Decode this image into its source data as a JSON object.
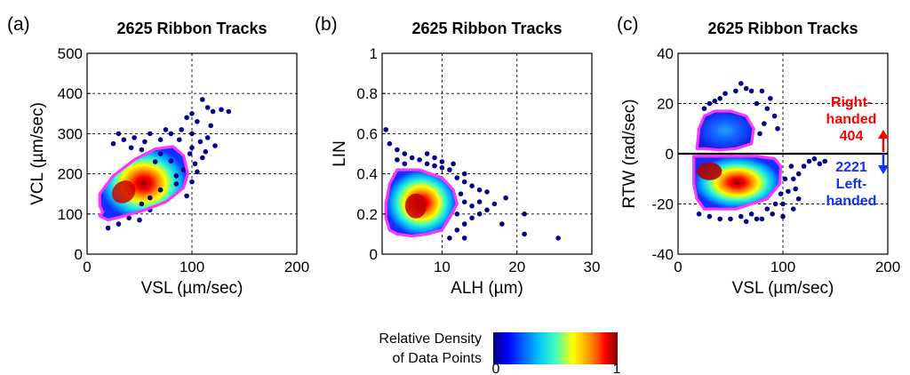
{
  "colors": {
    "contour": "#ff33ff",
    "right_handed": "#ff0000",
    "left_handed": "#1030ff",
    "scatter": "#00008b",
    "colormap": [
      "#000080",
      "#0000ff",
      "#00bfff",
      "#40ffbf",
      "#ffff00",
      "#ff8000",
      "#ff0000",
      "#800000"
    ]
  },
  "chart_data": [
    {
      "type": "scatter",
      "label": "(a)",
      "title": "2625 Ribbon Tracks",
      "xlabel": "VSL (µm/sec)",
      "ylabel": "VCL (µm/sec)",
      "xlim": [
        0,
        200
      ],
      "ylim": [
        0,
        500
      ],
      "xticks": [
        "0",
        "100",
        "200"
      ],
      "yticks": [
        "0",
        "100",
        "200",
        "300",
        "400",
        "500"
      ],
      "grid": true,
      "density_peak": [
        35,
        155
      ],
      "contour": [
        [
          15,
          105
        ],
        [
          12,
          95
        ],
        [
          20,
          85
        ],
        [
          35,
          95
        ],
        [
          55,
          110
        ],
        [
          75,
          130
        ],
        [
          92,
          165
        ],
        [
          96,
          200
        ],
        [
          92,
          245
        ],
        [
          82,
          268
        ],
        [
          65,
          262
        ],
        [
          45,
          235
        ],
        [
          25,
          195
        ],
        [
          12,
          150
        ],
        [
          12,
          120
        ]
      ],
      "outliers": [
        [
          110,
          385
        ],
        [
          115,
          365
        ],
        [
          120,
          355
        ],
        [
          128,
          360
        ],
        [
          135,
          355
        ],
        [
          100,
          350
        ],
        [
          105,
          330
        ],
        [
          95,
          340
        ],
        [
          118,
          320
        ],
        [
          100,
          300
        ],
        [
          90,
          310
        ],
        [
          80,
          300
        ],
        [
          108,
          280
        ],
        [
          115,
          290
        ],
        [
          122,
          270
        ],
        [
          98,
          250
        ],
        [
          110,
          240
        ],
        [
          105,
          205
        ],
        [
          100,
          180
        ],
        [
          85,
          175
        ],
        [
          70,
          160
        ],
        [
          60,
          140
        ],
        [
          52,
          125
        ],
        [
          95,
          145
        ],
        [
          40,
          90
        ],
        [
          30,
          75
        ],
        [
          20,
          65
        ],
        [
          50,
          85
        ],
        [
          60,
          110
        ],
        [
          30,
          300
        ],
        [
          35,
          285
        ],
        [
          45,
          290
        ],
        [
          55,
          280
        ],
        [
          60,
          300
        ],
        [
          25,
          275
        ],
        [
          42,
          265
        ],
        [
          70,
          285
        ],
        [
          75,
          310
        ],
        [
          88,
          285
        ],
        [
          100,
          265
        ],
        [
          113,
          255
        ],
        [
          103,
          225
        ],
        [
          92,
          210
        ],
        [
          85,
          195
        ],
        [
          80,
          232
        ],
        [
          65,
          230
        ],
        [
          70,
          250
        ],
        [
          52,
          260
        ]
      ]
    },
    {
      "type": "scatter",
      "label": "(b)",
      "title": "2625 Ribbon Tracks",
      "xlabel": "ALH (µm)",
      "ylabel": "LIN",
      "xlim": [
        2,
        30
      ],
      "ylim": [
        0,
        1
      ],
      "xticks": [
        "10",
        "20",
        "30"
      ],
      "yticks": [
        "0",
        "0.2",
        "0.4",
        "0.6",
        "0.8",
        "1"
      ],
      "grid": true,
      "density_peak": [
        6.5,
        0.24
      ],
      "contour": [
        [
          3,
          0.12
        ],
        [
          4,
          0.1
        ],
        [
          6,
          0.09
        ],
        [
          8,
          0.1
        ],
        [
          10,
          0.12
        ],
        [
          11,
          0.18
        ],
        [
          12,
          0.25
        ],
        [
          11.5,
          0.32
        ],
        [
          10,
          0.38
        ],
        [
          7,
          0.42
        ],
        [
          4,
          0.42
        ],
        [
          3,
          0.35
        ],
        [
          2.5,
          0.25
        ],
        [
          2.5,
          0.18
        ]
      ],
      "outliers": [
        [
          2.5,
          0.62
        ],
        [
          3,
          0.55
        ],
        [
          4,
          0.52
        ],
        [
          5,
          0.5
        ],
        [
          6,
          0.48
        ],
        [
          7,
          0.47
        ],
        [
          8,
          0.45
        ],
        [
          9,
          0.44
        ],
        [
          10,
          0.43
        ],
        [
          11,
          0.42
        ],
        [
          12,
          0.38
        ],
        [
          13,
          0.36
        ],
        [
          14,
          0.34
        ],
        [
          15,
          0.32
        ],
        [
          16,
          0.31
        ],
        [
          12,
          0.12
        ],
        [
          13,
          0.15
        ],
        [
          14,
          0.18
        ],
        [
          15,
          0.2
        ],
        [
          16,
          0.22
        ],
        [
          17,
          0.25
        ],
        [
          18,
          0.15
        ],
        [
          18.5,
          0.28
        ],
        [
          21,
          0.2
        ],
        [
          21,
          0.1
        ],
        [
          25.5,
          0.08
        ],
        [
          12.5,
          0.3
        ],
        [
          13,
          0.26
        ],
        [
          14,
          0.24
        ],
        [
          15,
          0.26
        ],
        [
          13,
          0.08
        ],
        [
          11,
          0.08
        ],
        [
          4,
          0.47
        ],
        [
          5,
          0.45
        ],
        [
          8,
          0.5
        ],
        [
          9,
          0.48
        ],
        [
          10,
          0.46
        ],
        [
          11.5,
          0.45
        ],
        [
          13,
          0.4
        ],
        [
          12,
          0.2
        ]
      ]
    },
    {
      "type": "scatter",
      "label": "(c)",
      "title": "2625 Ribbon Tracks",
      "xlabel": "VSL (µm/sec)",
      "ylabel": "RTW (rad/sec)",
      "xlim": [
        0,
        200
      ],
      "ylim": [
        -40,
        40
      ],
      "xticks": [
        "0",
        "100",
        "200"
      ],
      "yticks": [
        "-40",
        "-20",
        "0",
        "20",
        "40"
      ],
      "grid": true,
      "zero_line": true,
      "density_peaks": [
        [
          30,
          -7
        ],
        [
          45,
          12
        ]
      ],
      "contour_upper": [
        [
          18,
          2
        ],
        [
          20,
          10
        ],
        [
          25,
          15
        ],
        [
          35,
          17
        ],
        [
          50,
          17
        ],
        [
          65,
          15
        ],
        [
          72,
          10
        ],
        [
          70,
          4
        ],
        [
          55,
          2
        ],
        [
          40,
          1.5
        ],
        [
          25,
          2
        ]
      ],
      "contour_lower": [
        [
          15,
          -1
        ],
        [
          15,
          -12
        ],
        [
          18,
          -18
        ],
        [
          25,
          -22
        ],
        [
          40,
          -22
        ],
        [
          55,
          -22
        ],
        [
          70,
          -20
        ],
        [
          85,
          -18
        ],
        [
          97,
          -12
        ],
        [
          98,
          -5
        ],
        [
          92,
          -2
        ],
        [
          75,
          -1
        ],
        [
          50,
          -1
        ],
        [
          30,
          -1
        ]
      ],
      "outliers": [
        [
          60,
          28
        ],
        [
          65,
          26
        ],
        [
          70,
          25
        ],
        [
          80,
          25
        ],
        [
          88,
          22
        ],
        [
          75,
          20
        ],
        [
          85,
          18
        ],
        [
          55,
          25
        ],
        [
          45,
          24
        ],
        [
          40,
          22
        ],
        [
          35,
          21
        ],
        [
          30,
          20
        ],
        [
          25,
          18
        ],
        [
          92,
          15
        ],
        [
          95,
          10
        ],
        [
          82,
          12
        ],
        [
          78,
          8
        ],
        [
          20,
          -24
        ],
        [
          30,
          -25
        ],
        [
          40,
          -26
        ],
        [
          50,
          -26
        ],
        [
          60,
          -25
        ],
        [
          70,
          -24
        ],
        [
          80,
          -26
        ],
        [
          90,
          -24
        ],
        [
          100,
          -20
        ],
        [
          105,
          -15
        ],
        [
          110,
          -10
        ],
        [
          115,
          -8
        ],
        [
          120,
          -5
        ],
        [
          125,
          -3
        ],
        [
          130,
          -2
        ],
        [
          135,
          -4
        ],
        [
          140,
          -3
        ],
        [
          100,
          -25
        ],
        [
          110,
          -22
        ],
        [
          115,
          -18
        ],
        [
          108,
          -5
        ],
        [
          98,
          -16
        ],
        [
          93,
          -20
        ],
        [
          65,
          -27
        ],
        [
          85,
          -22
        ],
        [
          75,
          -26
        ],
        [
          102,
          -10
        ],
        [
          112,
          -14
        ]
      ],
      "annotations": {
        "upper": [
          "Right-",
          "handed",
          "404"
        ],
        "lower": [
          "2221",
          "Left-",
          "handed"
        ]
      }
    }
  ],
  "colorbar": {
    "label_line1": "Relative Density",
    "label_line2": "of Data Points",
    "min_label": "0",
    "max_label": "1"
  }
}
